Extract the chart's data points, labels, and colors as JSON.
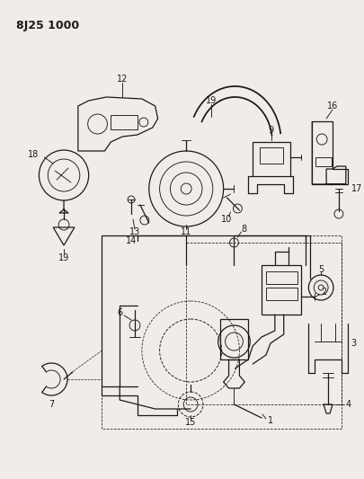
{
  "title": "8J25 1000",
  "bg_color": "#f0ede8",
  "line_color": "#1a1a1a",
  "title_fontsize": 9,
  "label_fontsize": 6.5,
  "figsize": [
    4.05,
    5.33
  ],
  "dpi": 100
}
